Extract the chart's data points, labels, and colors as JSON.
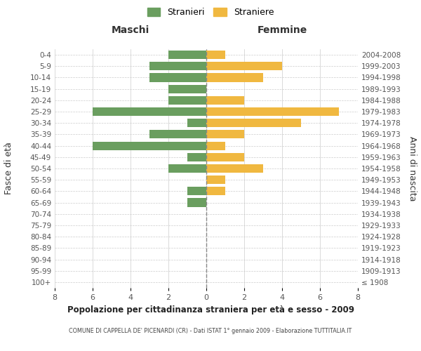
{
  "age_groups": [
    "100+",
    "95-99",
    "90-94",
    "85-89",
    "80-84",
    "75-79",
    "70-74",
    "65-69",
    "60-64",
    "55-59",
    "50-54",
    "45-49",
    "40-44",
    "35-39",
    "30-34",
    "25-29",
    "20-24",
    "15-19",
    "10-14",
    "5-9",
    "0-4"
  ],
  "birth_years": [
    "≤ 1908",
    "1909-1913",
    "1914-1918",
    "1919-1923",
    "1924-1928",
    "1929-1933",
    "1934-1938",
    "1939-1943",
    "1944-1948",
    "1949-1953",
    "1954-1958",
    "1959-1963",
    "1964-1968",
    "1969-1973",
    "1974-1978",
    "1979-1983",
    "1984-1988",
    "1989-1993",
    "1994-1998",
    "1999-2003",
    "2004-2008"
  ],
  "maschi": [
    0,
    0,
    0,
    0,
    0,
    0,
    0,
    1,
    1,
    0,
    2,
    1,
    6,
    3,
    1,
    6,
    2,
    2,
    3,
    3,
    2
  ],
  "femmine": [
    0,
    0,
    0,
    0,
    0,
    0,
    0,
    0,
    1,
    1,
    3,
    2,
    1,
    2,
    5,
    7,
    2,
    0,
    3,
    4,
    1
  ],
  "maschi_color": "#6a9e5f",
  "femmine_color": "#f0b840",
  "title_main": "Popolazione per cittadinanza straniera per età e sesso - 2009",
  "title_sub": "COMUNE DI CAPPELLA DE' PICENARDI (CR) - Dati ISTAT 1° gennaio 2009 - Elaborazione TUTTITALIA.IT",
  "legend_maschi": "Stranieri",
  "legend_femmine": "Straniere",
  "xlabel_left": "Maschi",
  "xlabel_right": "Femmine",
  "ylabel_left": "Fasce di età",
  "ylabel_right": "Anni di nascita",
  "xlim": 8,
  "background_color": "#ffffff",
  "grid_color": "#cccccc"
}
